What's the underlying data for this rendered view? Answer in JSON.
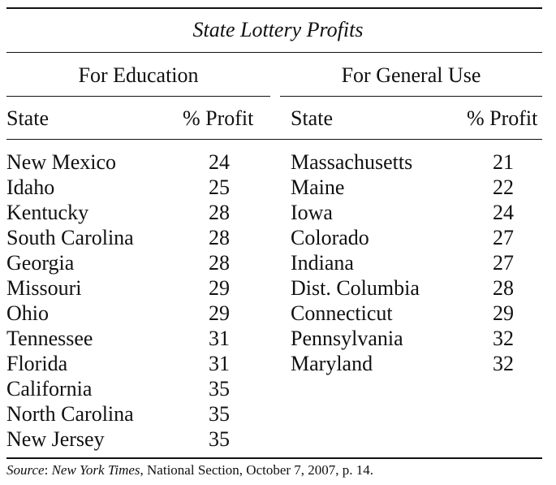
{
  "table": {
    "title": "State Lottery Profits",
    "groups": [
      {
        "label": "For Education",
        "col_state": "State",
        "col_profit": "% Profit",
        "rows": [
          {
            "state": "New Mexico",
            "profit": "24"
          },
          {
            "state": "Idaho",
            "profit": "25"
          },
          {
            "state": "Kentucky",
            "profit": "28"
          },
          {
            "state": "South Carolina",
            "profit": "28"
          },
          {
            "state": "Georgia",
            "profit": "28"
          },
          {
            "state": "Missouri",
            "profit": "29"
          },
          {
            "state": "Ohio",
            "profit": "29"
          },
          {
            "state": "Tennessee",
            "profit": "31"
          },
          {
            "state": "Florida",
            "profit": "31"
          },
          {
            "state": "California",
            "profit": "35"
          },
          {
            "state": "North Carolina",
            "profit": "35"
          },
          {
            "state": "New Jersey",
            "profit": "35"
          }
        ]
      },
      {
        "label": "For General Use",
        "col_state": "State",
        "col_profit": "% Profit",
        "rows": [
          {
            "state": "Massachusetts",
            "profit": "21"
          },
          {
            "state": "Maine",
            "profit": "22"
          },
          {
            "state": "Iowa",
            "profit": "24"
          },
          {
            "state": "Colorado",
            "profit": "27"
          },
          {
            "state": "Indiana",
            "profit": "27"
          },
          {
            "state": "Dist. Columbia",
            "profit": "28"
          },
          {
            "state": "Connecticut",
            "profit": "29"
          },
          {
            "state": "Pennsylvania",
            "profit": "32"
          },
          {
            "state": "Maryland",
            "profit": "32"
          }
        ]
      }
    ],
    "source": {
      "label": "Source",
      "publication": "New York Times",
      "detail": ", National Section, October 7, 2007, p. 14."
    }
  }
}
